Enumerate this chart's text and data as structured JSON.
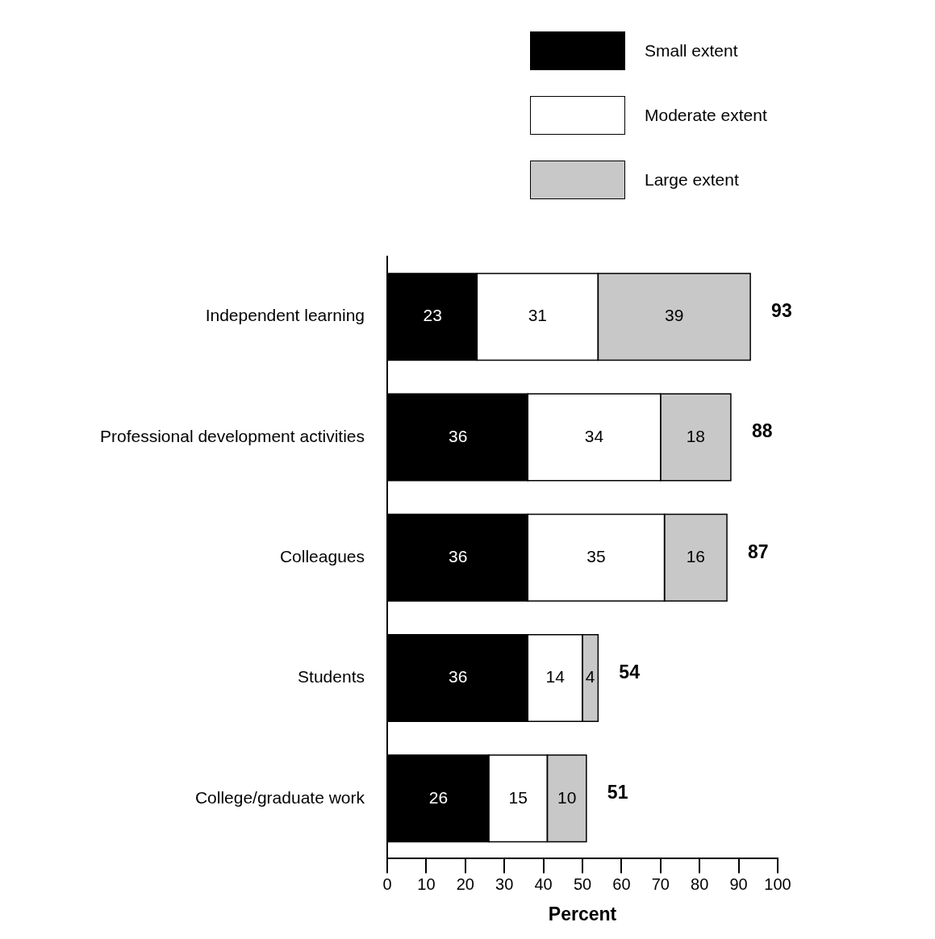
{
  "chart_data": {
    "type": "bar",
    "orientation": "horizontal",
    "stacked": true,
    "xlabel": "Percent",
    "categories": [
      "Independent learning",
      "Professional development activities",
      "Colleagues",
      "Students",
      "College/graduate work"
    ],
    "series": [
      {
        "name": "Small extent",
        "color": "#000000",
        "values": [
          23,
          36,
          36,
          36,
          26
        ]
      },
      {
        "name": "Moderate extent",
        "color": "#ffffff",
        "values": [
          31,
          34,
          35,
          14,
          15
        ]
      },
      {
        "name": "Large extent",
        "color": "#c8c8c8",
        "values": [
          39,
          18,
          16,
          4,
          10
        ]
      }
    ],
    "totals": [
      "93",
      "88",
      "87",
      "54",
      "51"
    ],
    "data_labels": true,
    "legend": "top right",
    "grid": false,
    "xlim": [
      0,
      100
    ],
    "xticks": [
      0,
      10,
      20,
      30,
      40,
      50,
      60,
      70,
      80,
      90,
      100
    ]
  }
}
